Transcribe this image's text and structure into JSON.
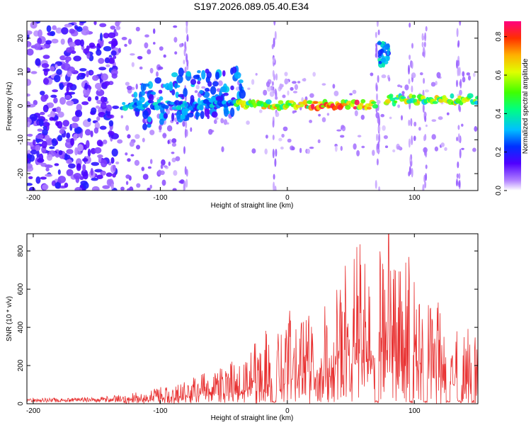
{
  "title": "S197.2026.089.05.40.E34",
  "chart_data": [
    {
      "type": "heatmap",
      "xlabel": "Height of straight line (km)",
      "ylabel": "Frequency (Hz)",
      "xlim": [
        -205,
        150
      ],
      "ylim": [
        -25,
        25
      ],
      "xticks": [
        -200,
        -100,
        0,
        100
      ],
      "yticks": [
        20,
        10,
        0,
        -10,
        -20
      ],
      "colorbar": {
        "label": "Normalized spectral amplitude",
        "range": [
          0,
          0.88
        ],
        "ticks": [
          0.0,
          0.2,
          0.4,
          0.6,
          0.8
        ],
        "colors": [
          "#ffffff",
          "#b080ff",
          "#5000ff",
          "#0030ff",
          "#00c0ff",
          "#00ff80",
          "#40ff00",
          "#e0ff00",
          "#ffb000",
          "#ff3000",
          "#ff0080"
        ]
      },
      "features": [
        {
          "name": "scattered noise",
          "x_range": [
            -205,
            -135
          ],
          "freq_range": [
            -25,
            25
          ],
          "amplitude": 0.12
        },
        {
          "name": "sparse noise",
          "x_range": [
            -135,
            -80
          ],
          "freq_range": [
            -25,
            25
          ],
          "amplitude": 0.06
        },
        {
          "name": "main band",
          "x_range": [
            -130,
            70
          ],
          "freq_center": 0.5,
          "amplitude_peak": 0.8
        },
        {
          "name": "upper burst",
          "x_range": [
            -75,
            -35
          ],
          "freq_center": 5,
          "amplitude": 0.25
        },
        {
          "name": "high frequency burst",
          "x_range": [
            72,
            80
          ],
          "freq_center": 16,
          "amplitude": 0.3
        },
        {
          "name": "main band 2",
          "x_range": [
            78,
            150
          ],
          "freq_center": 2,
          "amplitude_peak": 0.7
        }
      ]
    },
    {
      "type": "line",
      "xlabel": "Height of straight line (km)",
      "ylabel": "SNR (10 * v/v)",
      "xlim": [
        -205,
        150
      ],
      "ylim": [
        0,
        890
      ],
      "xticks": [
        -200,
        -100,
        0,
        100
      ],
      "yticks": [
        0,
        200,
        400,
        600,
        800
      ],
      "color": "#e83030",
      "envelope": {
        "x": [
          -205,
          -150,
          -130,
          -110,
          -90,
          -70,
          -50,
          -30,
          -20,
          -10,
          0,
          10,
          20,
          30,
          40,
          50,
          60,
          70,
          80,
          90,
          100,
          110,
          120,
          130,
          140,
          150
        ],
        "y": [
          20,
          25,
          40,
          70,
          100,
          140,
          190,
          260,
          360,
          380,
          500,
          430,
          500,
          540,
          600,
          770,
          820,
          850,
          870,
          820,
          700,
          580,
          500,
          380,
          400,
          380
        ]
      }
    }
  ]
}
